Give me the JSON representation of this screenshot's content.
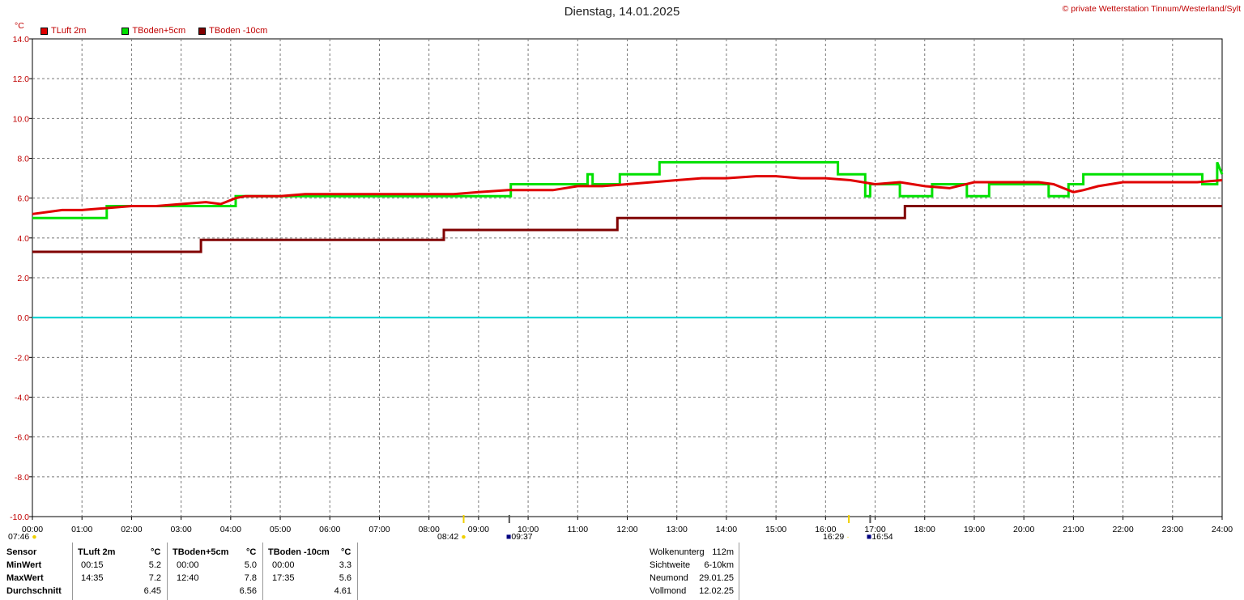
{
  "header": {
    "title": "Dienstag, 14.01.2025",
    "credit": "© private Wetterstation Tinnum/Westerland/Sylt",
    "unit": "°C"
  },
  "legend": [
    {
      "label": "TLuft 2m",
      "color": "#e00000"
    },
    {
      "label": "TBoden+5cm",
      "color": "#00e000"
    },
    {
      "label": "TBoden -10cm",
      "color": "#800000"
    }
  ],
  "sun": {
    "sunrise": "07:46",
    "sunset": "16:29",
    "civil_rise": "08:42",
    "civil_set": "16:54",
    "moon_rise": "09:37"
  },
  "chart_data": {
    "type": "line",
    "title": "Dienstag, 14.01.2025",
    "ylabel": "°C",
    "ylim": [
      -10,
      14
    ],
    "xlim": [
      0,
      24
    ],
    "yticks": [
      "14.0",
      "12.0",
      "10.0",
      "8.0",
      "6.0",
      "4.0",
      "2.0",
      "0.0",
      "-2.0",
      "-4.0",
      "-6.0",
      "-8.0",
      "-10.0"
    ],
    "xticks": [
      "00:00",
      "01:00",
      "02:00",
      "03:00",
      "04:00",
      "05:00",
      "06:00",
      "07:00",
      "08:00",
      "09:00",
      "10:00",
      "11:00",
      "12:00",
      "13:00",
      "14:00",
      "15:00",
      "16:00",
      "17:00",
      "18:00",
      "19:00",
      "20:00",
      "21:00",
      "22:00",
      "23:00",
      "24:00"
    ],
    "grid": true,
    "legend_position": "top-left",
    "series": [
      {
        "name": "TLuft 2m",
        "color": "#e00000",
        "x": [
          0,
          0.3,
          0.6,
          1.0,
          1.5,
          2.0,
          2.5,
          3.0,
          3.5,
          3.8,
          4.1,
          4.3,
          5.0,
          5.5,
          6.0,
          7.0,
          8.0,
          8.5,
          9.0,
          9.6,
          10.0,
          10.5,
          11.0,
          11.5,
          12.0,
          12.5,
          13.0,
          13.5,
          14.0,
          14.6,
          15.0,
          15.5,
          16.0,
          16.5,
          17.0,
          17.5,
          18.0,
          18.5,
          19.0,
          19.5,
          20.0,
          20.3,
          20.6,
          21.0,
          21.2,
          21.5,
          22.0,
          22.5,
          23.0,
          23.5,
          24.0
        ],
        "y": [
          5.2,
          5.3,
          5.4,
          5.4,
          5.5,
          5.6,
          5.6,
          5.7,
          5.8,
          5.7,
          6.0,
          6.1,
          6.1,
          6.2,
          6.2,
          6.2,
          6.2,
          6.2,
          6.3,
          6.4,
          6.4,
          6.4,
          6.6,
          6.6,
          6.7,
          6.8,
          6.9,
          7.0,
          7.0,
          7.1,
          7.1,
          7.0,
          7.0,
          6.9,
          6.7,
          6.8,
          6.6,
          6.5,
          6.8,
          6.8,
          6.8,
          6.8,
          6.7,
          6.3,
          6.4,
          6.6,
          6.8,
          6.8,
          6.8,
          6.8,
          6.9
        ]
      },
      {
        "name": "TBoden+5cm",
        "color": "#00e000",
        "x": [
          0,
          1.5,
          1.5,
          4.1,
          4.1,
          9.65,
          9.65,
          11.2,
          11.2,
          11.3,
          11.3,
          11.85,
          11.85,
          12.65,
          12.65,
          16.25,
          16.25,
          16.8,
          16.8,
          16.9,
          16.9,
          17.5,
          17.5,
          18.15,
          18.15,
          18.85,
          18.85,
          19.3,
          19.3,
          20.5,
          20.5,
          20.9,
          20.9,
          21.2,
          21.2,
          21.4,
          21.4,
          23.6,
          23.6,
          23.9,
          23.9,
          24
        ],
        "y": [
          5.0,
          5.0,
          5.6,
          5.6,
          6.1,
          6.1,
          6.7,
          6.7,
          7.2,
          7.2,
          6.7,
          6.7,
          7.2,
          7.2,
          7.8,
          7.8,
          7.2,
          7.2,
          6.1,
          6.1,
          6.7,
          6.7,
          6.1,
          6.1,
          6.7,
          6.7,
          6.1,
          6.1,
          6.7,
          6.7,
          6.1,
          6.1,
          6.7,
          6.7,
          7.2,
          7.2,
          7.2,
          7.2,
          6.7,
          6.7,
          7.8,
          7.2
        ]
      },
      {
        "name": "TBoden -10cm",
        "color": "#800000",
        "x": [
          0,
          3.4,
          3.4,
          8.3,
          8.3,
          11.8,
          11.8,
          17.6,
          17.6,
          24
        ],
        "y": [
          3.3,
          3.3,
          3.9,
          3.9,
          4.4,
          4.4,
          5.0,
          5.0,
          5.6,
          5.6
        ]
      },
      {
        "name": "",
        "color": "#00d0d0",
        "x": [
          0,
          24
        ],
        "y": [
          0,
          0
        ]
      }
    ]
  },
  "stats": {
    "header": [
      "Sensor",
      "TLuft 2m",
      "°C",
      "TBoden+5cm",
      "°C",
      "TBoden -10cm",
      "°C"
    ],
    "rows": [
      {
        "label": "MinWert",
        "t1": "00:15",
        "v1": "5.2",
        "t2": "00:00",
        "v2": "5.0",
        "t3": "00:00",
        "v3": "3.3"
      },
      {
        "label": "MaxWert",
        "t1": "14:35",
        "v1": "7.2",
        "t2": "12:40",
        "v2": "7.8",
        "t3": "17:35",
        "v3": "5.6"
      },
      {
        "label": "Durchschnitt",
        "t1": "",
        "v1": "6.45",
        "t2": "",
        "v2": "6.56",
        "t3": "",
        "v3": "4.61"
      }
    ]
  },
  "extra": [
    {
      "label": "Wolkenunterg",
      "value": "112m"
    },
    {
      "label": "Sichtweite",
      "value": "6-10km"
    },
    {
      "label": "Neumond",
      "value": "29.01.25"
    },
    {
      "label": "Vollmond",
      "value": "12.02.25"
    }
  ]
}
